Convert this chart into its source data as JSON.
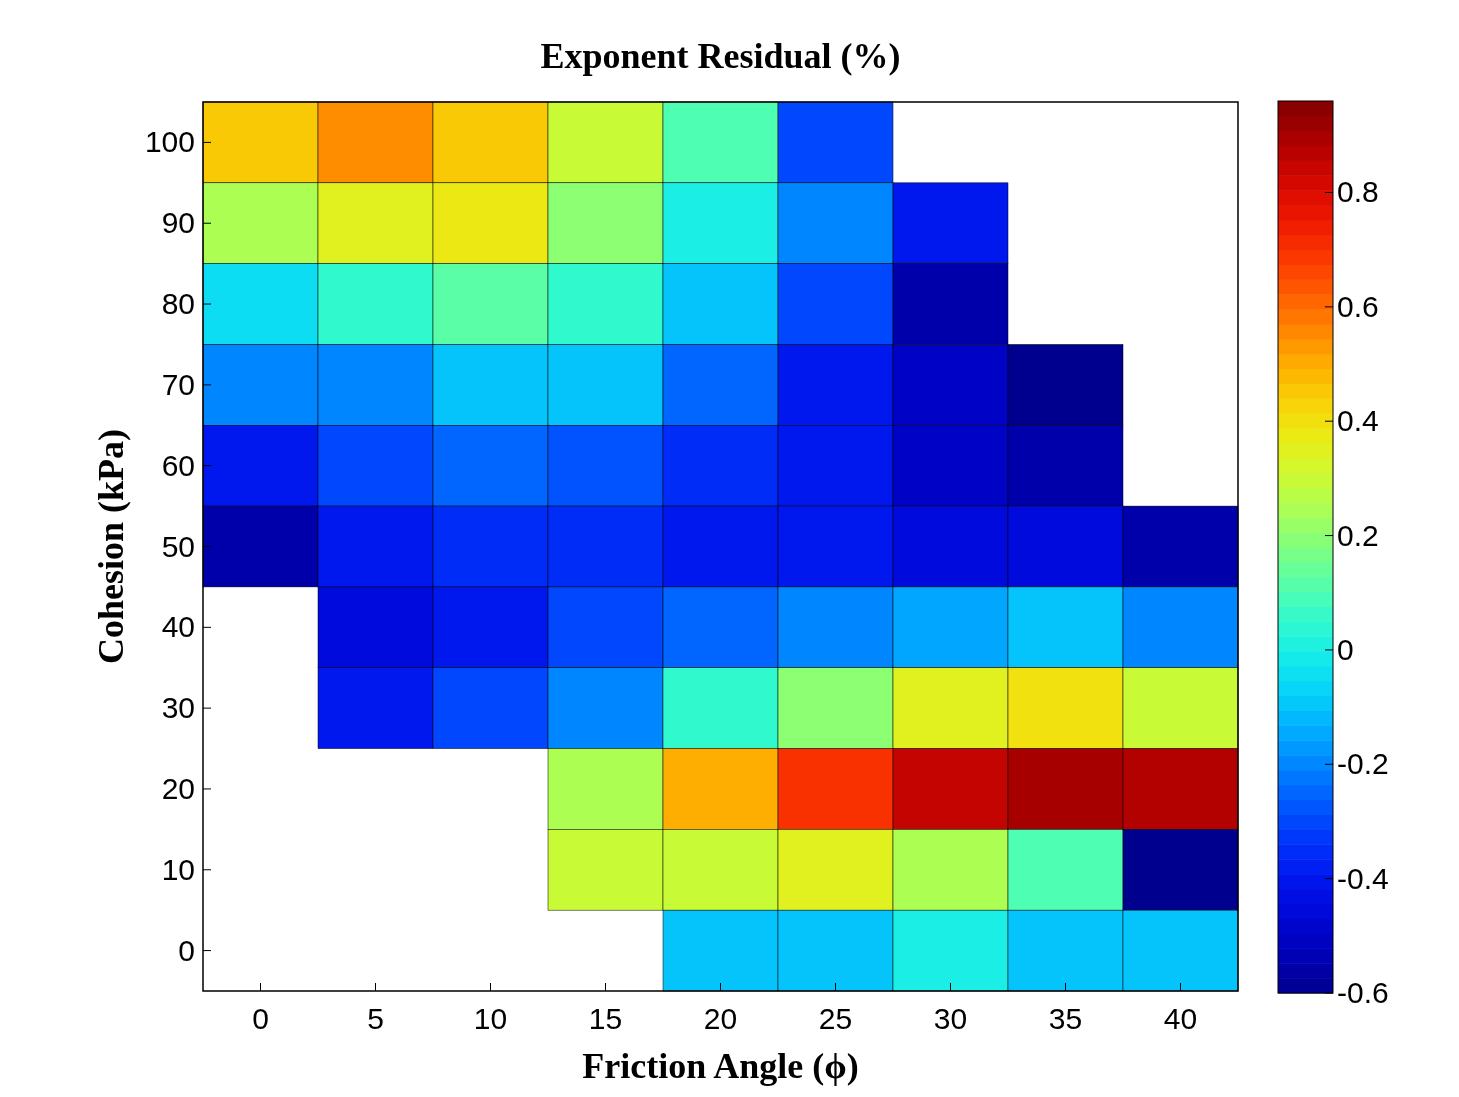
{
  "chart_data": {
    "type": "heatmap",
    "title": "Exponent Residual (%)",
    "xlabel": "Friction Angle (ϕ)",
    "ylabel": "Cohesion (kPa)",
    "categories": [
      "0",
      "5",
      "10",
      "15",
      "20",
      "25",
      "30",
      "35",
      "40"
    ],
    "y_categories": [
      "100",
      "90",
      "80",
      "70",
      "60",
      "50",
      "40",
      "30",
      "20",
      "10",
      "0"
    ],
    "cells": [
      [
        0.45,
        0.55,
        0.45,
        0.3,
        0.1,
        -0.3,
        null,
        null,
        null
      ],
      [
        0.25,
        0.35,
        0.38,
        0.2,
        0.0,
        -0.2,
        -0.4,
        null,
        null
      ],
      [
        -0.05,
        0.05,
        0.12,
        0.05,
        -0.1,
        -0.3,
        -0.55,
        null,
        null
      ],
      [
        -0.2,
        -0.2,
        -0.1,
        -0.1,
        -0.25,
        -0.4,
        -0.5,
        -0.6,
        null
      ],
      [
        -0.4,
        -0.3,
        -0.25,
        -0.28,
        -0.35,
        -0.4,
        -0.5,
        -0.55,
        null
      ],
      [
        -0.55,
        -0.4,
        -0.35,
        -0.35,
        -0.4,
        -0.4,
        -0.45,
        -0.45,
        -0.55
      ],
      [
        null,
        -0.45,
        -0.4,
        -0.3,
        -0.25,
        -0.2,
        -0.15,
        -0.1,
        -0.2
      ],
      [
        null,
        -0.4,
        -0.3,
        -0.2,
        0.05,
        0.2,
        0.35,
        0.4,
        0.3
      ],
      [
        null,
        null,
        null,
        0.25,
        0.5,
        0.7,
        0.85,
        0.9,
        0.88
      ],
      [
        null,
        null,
        null,
        0.3,
        0.3,
        0.35,
        0.25,
        0.1,
        -0.6
      ],
      [
        null,
        null,
        null,
        null,
        -0.1,
        -0.1,
        0.0,
        -0.1,
        -0.1
      ]
    ],
    "clim": [
      -0.6,
      0.96
    ],
    "cticks": [
      {
        "value": -0.6,
        "label": "-0.6"
      },
      {
        "value": -0.4,
        "label": "-0.4"
      },
      {
        "value": -0.2,
        "label": "-0.2"
      },
      0,
      {
        "value": 0.2,
        "label": "0.2"
      },
      {
        "value": 0.4,
        "label": "0.4"
      },
      {
        "value": 0.6,
        "label": "0.6"
      },
      {
        "value": 0.8,
        "label": "0.8"
      }
    ]
  }
}
